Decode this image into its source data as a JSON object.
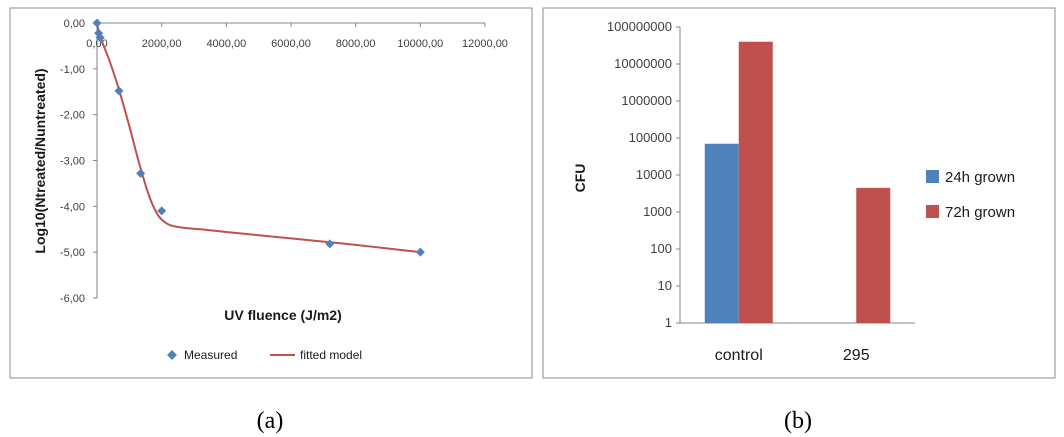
{
  "colors": {
    "measured": "#4f81bd",
    "fitted": "#c0504d",
    "s24": "#4f81bd",
    "s72": "#c0504d"
  },
  "chart_data": [
    {
      "type": "scatter",
      "caption": "(a)",
      "xlabel": "UV fluence (J/m2)",
      "ylabel": "Log10(Ntreated/Nuntreated)",
      "xlim": [
        0,
        12000
      ],
      "ylim": [
        -6,
        0
      ],
      "x_ticks": [
        "0,00",
        "2000,00",
        "4000,00",
        "6000,00",
        "8000,00",
        "10000,00",
        "12000,00"
      ],
      "y_ticks": [
        "0,00",
        "-1,00",
        "-2,00",
        "-3,00",
        "-4,00",
        "-5,00",
        "-6,00"
      ],
      "legend": [
        "Measured",
        "fitted model"
      ],
      "legend_position": "bottom",
      "series": [
        {
          "name": "Measured",
          "x": [
            0,
            50,
            100,
            680,
            1350,
            2000,
            7200,
            10000
          ],
          "y": [
            0.0,
            -0.22,
            -0.32,
            -1.48,
            -3.28,
            -4.1,
            -4.82,
            -5.0
          ]
        },
        {
          "name": "fitted model",
          "x": [
            0,
            100,
            400,
            700,
            1000,
            1300,
            1600,
            1850,
            2050,
            2300,
            2700,
            3200,
            4000,
            5000,
            6000,
            7000,
            8000,
            9000,
            10000
          ],
          "y": [
            0.0,
            -0.3,
            -0.85,
            -1.5,
            -2.25,
            -3.05,
            -3.75,
            -4.15,
            -4.32,
            -4.42,
            -4.47,
            -4.5,
            -4.56,
            -4.63,
            -4.7,
            -4.77,
            -4.84,
            -4.92,
            -5.0
          ]
        }
      ]
    },
    {
      "type": "bar",
      "caption": "(b)",
      "ylabel": "CFU",
      "yscale": "log",
      "ylim": [
        1,
        100000000
      ],
      "y_ticks": [
        "1",
        "10",
        "100",
        "1000",
        "10000",
        "100000",
        "1000000",
        "10000000",
        "100000000"
      ],
      "categories": [
        "control",
        "295"
      ],
      "legend_position": "right",
      "series": [
        {
          "name": "24h grown",
          "values": [
            70000,
            null
          ]
        },
        {
          "name": "72h grown",
          "values": [
            40000000,
            4500
          ]
        }
      ]
    }
  ]
}
